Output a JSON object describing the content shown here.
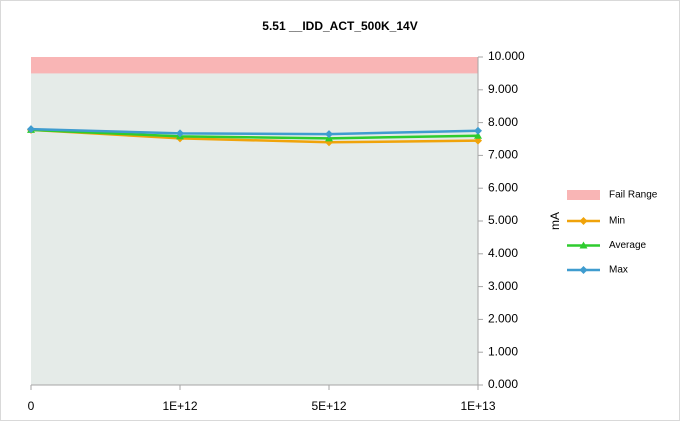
{
  "chart_data": {
    "type": "line",
    "title": "5.51 __IDD_ACT_500K_14V",
    "y_label": "mA",
    "categories": [
      "0",
      "1E+12",
      "5E+12",
      "1E+13"
    ],
    "series": [
      {
        "name": "Min",
        "color": "#f0a30a",
        "marker": "diamond",
        "values": [
          7.78,
          7.52,
          7.4,
          7.45
        ]
      },
      {
        "name": "Average",
        "color": "#2ecc2e",
        "marker": "triangle",
        "values": [
          7.78,
          7.58,
          7.52,
          7.6
        ]
      },
      {
        "name": "Max",
        "color": "#3f9ccf",
        "marker": "diamond",
        "values": [
          7.8,
          7.67,
          7.65,
          7.75
        ]
      }
    ],
    "bands": [
      {
        "name": "Fail Range",
        "color": "#f9b5b5",
        "from": 9.5,
        "to": 10
      }
    ],
    "plot_background": "#e5ebe8",
    "ylim": [
      0,
      10
    ],
    "y_axis_side": "right",
    "yticks": [
      {
        "value": 0,
        "label": "0.000"
      },
      {
        "value": 1,
        "label": "1.000"
      },
      {
        "value": 2,
        "label": "2.000"
      },
      {
        "value": 3,
        "label": "3.000"
      },
      {
        "value": 4,
        "label": "4.000"
      },
      {
        "value": 5,
        "label": "5.000"
      },
      {
        "value": 6,
        "label": "6.000"
      },
      {
        "value": 7,
        "label": "7.000"
      },
      {
        "value": 8,
        "label": "8.000"
      },
      {
        "value": 9,
        "label": "9.000"
      },
      {
        "value": 10,
        "label": "10.000"
      }
    ],
    "legend": "right"
  }
}
